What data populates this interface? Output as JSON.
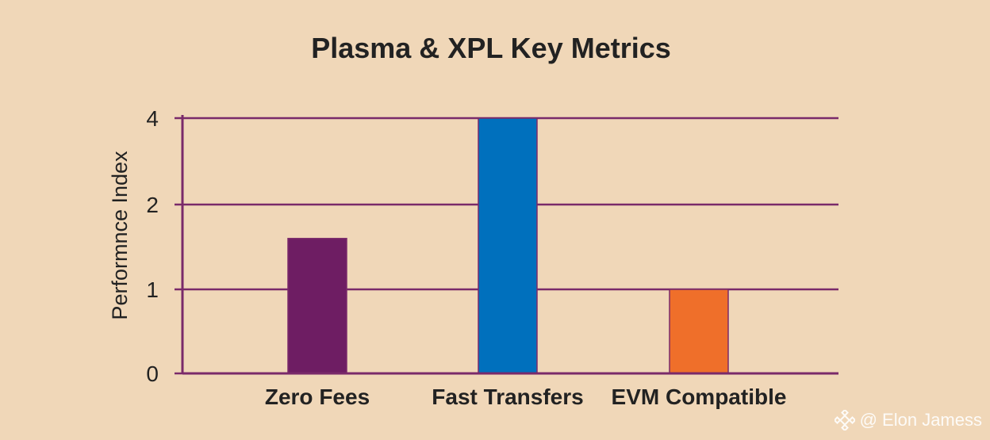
{
  "chart_data": {
    "type": "bar",
    "title": "Plasma & XPL Key Metrics",
    "xlabel": "",
    "ylabel": "Performnce Index",
    "categories": [
      "Zero Fees",
      "Fast Transfers",
      "EVM Compatible"
    ],
    "values": [
      1.6,
      4,
      1
    ],
    "bar_colors": [
      "#6e1d63",
      "#0070bd",
      "#ef6f2a"
    ],
    "yticks": [
      0,
      1,
      2,
      4
    ],
    "ylim": [
      0,
      4
    ],
    "grid": true,
    "axis_color": "#7a2a6a"
  },
  "watermark": {
    "text": "@ Elon Jamess",
    "icon": "binance-logo-icon"
  }
}
